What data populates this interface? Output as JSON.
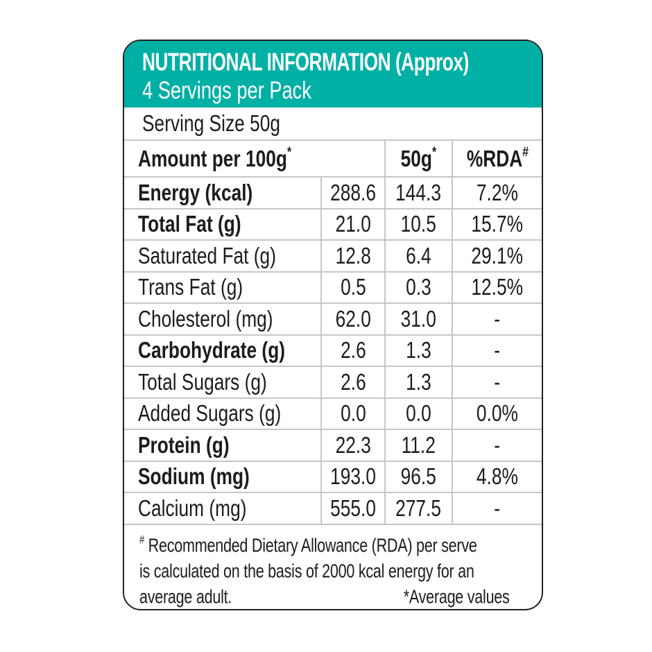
{
  "header": {
    "title": "NUTRITIONAL INFORMATION (Approx)",
    "subtitle": "4 Servings per Pack"
  },
  "serving_size": "Serving Size 50g",
  "table": {
    "columns": [
      {
        "label": "Amount per 100g",
        "sup": "*"
      },
      {
        "label": "50g",
        "sup": "*"
      },
      {
        "label": "%RDA",
        "sup": "#"
      }
    ],
    "rows": [
      {
        "label": "Energy (kcal)",
        "bold": true,
        "per100": "288.6",
        "per50": "144.3",
        "rda": "7.2%"
      },
      {
        "label": "Total Fat (g)",
        "bold": true,
        "per100": "21.0",
        "per50": "10.5",
        "rda": "15.7%"
      },
      {
        "label": "Saturated Fat (g)",
        "bold": false,
        "per100": "12.8",
        "per50": "6.4",
        "rda": "29.1%"
      },
      {
        "label": "Trans Fat (g)",
        "bold": false,
        "per100": "0.5",
        "per50": "0.3",
        "rda": "12.5%"
      },
      {
        "label": "Cholesterol (mg)",
        "bold": false,
        "per100": "62.0",
        "per50": "31.0",
        "rda": "-"
      },
      {
        "label": "Carbohydrate (g)",
        "bold": true,
        "per100": "2.6",
        "per50": "1.3",
        "rda": "-"
      },
      {
        "label": "Total Sugars (g)",
        "bold": false,
        "per100": "2.6",
        "per50": "1.3",
        "rda": "-"
      },
      {
        "label": "Added Sugars (g)",
        "bold": false,
        "per100": "0.0",
        "per50": "0.0",
        "rda": "0.0%"
      },
      {
        "label": "Protein (g)",
        "bold": true,
        "per100": "22.3",
        "per50": "11.2",
        "rda": "-"
      },
      {
        "label": "Sodium (mg)",
        "bold": true,
        "per100": "193.0",
        "per50": "96.5",
        "rda": "4.8%"
      },
      {
        "label": "Calcium (mg)",
        "bold": false,
        "per100": "555.0",
        "per50": "277.5",
        "rda": "-"
      }
    ]
  },
  "footnote": {
    "sup": "#",
    "line1": "Recommended Dietary Allowance (RDA) per serve",
    "line2": "is calculated on the basis of 2000 kcal energy for an",
    "line3": "average adult.",
    "average_note": "*Average values"
  },
  "colors": {
    "header_bg": "#00b0a4",
    "header_text": "#ffffff",
    "card_border": "#222222",
    "gridline": "#c5c7c7",
    "text": "#1c1c1c",
    "background": "#ffffff"
  }
}
